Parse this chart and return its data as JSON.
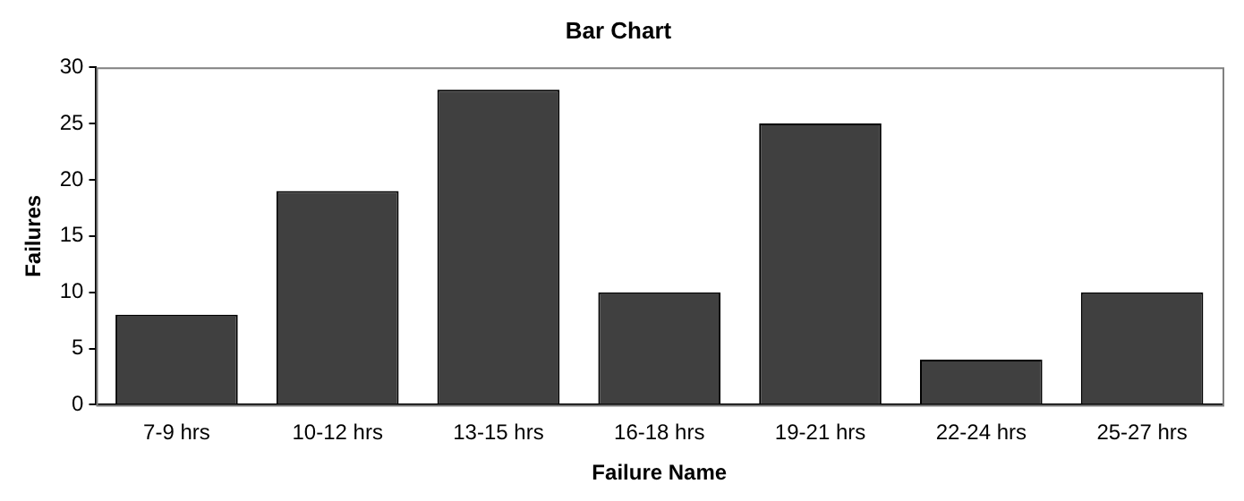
{
  "chart_data": {
    "type": "bar",
    "title": "Bar Chart",
    "xlabel": "Failure Name",
    "ylabel": "Failures",
    "categories": [
      "7-9 hrs",
      "10-12 hrs",
      "13-15 hrs",
      "16-18 hrs",
      "19-21 hrs",
      "22-24 hrs",
      "25-27 hrs"
    ],
    "values": [
      8,
      19,
      28,
      10,
      25,
      4,
      10
    ],
    "color": "#404040",
    "ylim": [
      0,
      30
    ],
    "yticks": [
      0,
      5,
      10,
      15,
      20,
      25,
      30
    ],
    "grid": false,
    "legend": false
  }
}
